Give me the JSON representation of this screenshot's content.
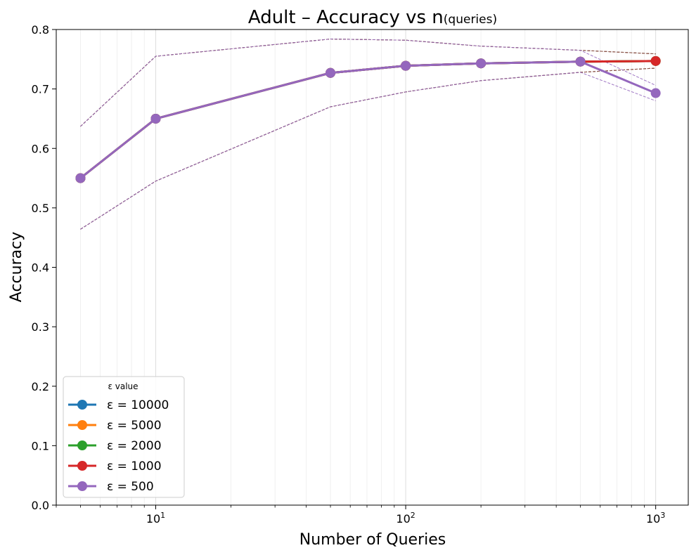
{
  "chart_data": {
    "type": "line",
    "title": "Adult – Accuracy vs n",
    "title_sub": "(queries)",
    "xlabel": "Number of Queries",
    "ylabel": "Accuracy",
    "x_scale": "log",
    "xlim": [
      4,
      1350
    ],
    "ylim": [
      0,
      0.8
    ],
    "y_ticks": [
      0.0,
      0.1,
      0.2,
      0.3,
      0.4,
      0.5,
      0.6,
      0.7,
      0.8
    ],
    "y_tick_labels": [
      "0.0",
      "0.1",
      "0.2",
      "0.3",
      "0.4",
      "0.5",
      "0.6",
      "0.7",
      "0.8"
    ],
    "x_major_ticks": [
      {
        "value": 10,
        "base": "10",
        "exp": "1"
      },
      {
        "value": 100,
        "base": "10",
        "exp": "2"
      },
      {
        "value": 1000,
        "base": "10",
        "exp": "3"
      }
    ],
    "grid": "vertical-minor-and-major",
    "legend": {
      "title": "ε value",
      "placement": "lower-left"
    },
    "x": [
      5,
      10,
      50,
      100,
      200,
      500,
      1000
    ],
    "series": [
      {
        "name": "ε = 10000",
        "color": "#1f77b4",
        "values": [
          0.55,
          0.65,
          0.727,
          0.739,
          0.743,
          0.746,
          0.747
        ],
        "band_upper": [
          0.637,
          0.755,
          0.784,
          0.782,
          0.772,
          0.765,
          0.759
        ],
        "band_lower": [
          0.464,
          0.545,
          0.67,
          0.695,
          0.714,
          0.728,
          0.735
        ]
      },
      {
        "name": "ε = 5000",
        "color": "#ff7f0e",
        "values": [
          0.55,
          0.65,
          0.727,
          0.739,
          0.743,
          0.746,
          0.747
        ],
        "band_upper": [
          0.637,
          0.755,
          0.784,
          0.782,
          0.772,
          0.765,
          0.759
        ],
        "band_lower": [
          0.464,
          0.545,
          0.67,
          0.695,
          0.714,
          0.728,
          0.735
        ]
      },
      {
        "name": "ε = 2000",
        "color": "#2ca02c",
        "values": [
          0.55,
          0.65,
          0.727,
          0.739,
          0.743,
          0.746,
          0.747
        ],
        "band_upper": [
          0.637,
          0.755,
          0.784,
          0.782,
          0.772,
          0.765,
          0.759
        ],
        "band_lower": [
          0.464,
          0.545,
          0.67,
          0.695,
          0.714,
          0.728,
          0.735
        ]
      },
      {
        "name": "ε = 1000",
        "color": "#d62728",
        "values": [
          0.55,
          0.65,
          0.727,
          0.739,
          0.743,
          0.746,
          0.747
        ],
        "band_upper": [
          0.637,
          0.755,
          0.784,
          0.782,
          0.772,
          0.765,
          0.759
        ],
        "band_lower": [
          0.464,
          0.545,
          0.67,
          0.695,
          0.714,
          0.728,
          0.735
        ]
      },
      {
        "name": "ε = 500",
        "color": "#9467bd",
        "values": [
          0.55,
          0.65,
          0.727,
          0.739,
          0.743,
          0.746,
          0.693
        ],
        "band_upper": [
          0.637,
          0.755,
          0.784,
          0.782,
          0.772,
          0.765,
          0.706
        ],
        "band_lower": [
          0.464,
          0.545,
          0.67,
          0.695,
          0.714,
          0.728,
          0.68
        ]
      }
    ],
    "band_color": "#8c564b"
  }
}
